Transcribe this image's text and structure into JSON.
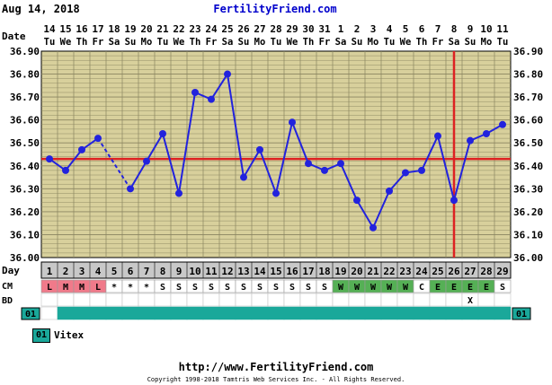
{
  "header": {
    "date": "Aug 14, 2018",
    "site": "FertilityFriend.com"
  },
  "row_labels": {
    "date": "Date",
    "day": "Day",
    "cm": "CM",
    "bd": "BD",
    "code": "01"
  },
  "legend": {
    "code": "01",
    "label": "Vitex"
  },
  "footer": {
    "url": "http://www.FertilityFriend.com",
    "copyright": "Copyright 1998-2018 Tamtris Web Services Inc. - All Rights Reserved."
  },
  "colors": {
    "grid_bg": "#d8d09c",
    "grid_line": "#8a8460",
    "line": "#2222dd",
    "coverline": "#dd2222",
    "day_row": "#c8c8c8",
    "cm_pink": "#f07a8a",
    "cm_green": "#55b055",
    "code_teal": "#1aa89a"
  },
  "chart_data": {
    "type": "line",
    "title": "",
    "xlabel": "Day",
    "ylabel": "",
    "ylim": [
      36.0,
      36.9
    ],
    "yticks": [
      "36.00",
      "36.10",
      "36.20",
      "36.30",
      "36.40",
      "36.50",
      "36.60",
      "36.70",
      "36.80",
      "36.90"
    ],
    "dates": [
      "14",
      "15",
      "16",
      "17",
      "18",
      "19",
      "20",
      "21",
      "22",
      "23",
      "24",
      "25",
      "26",
      "27",
      "28",
      "29",
      "30",
      "31",
      "1",
      "2",
      "3",
      "4",
      "5",
      "6",
      "7",
      "8",
      "9",
      "10",
      "11"
    ],
    "weekdays": [
      "Tu",
      "We",
      "Th",
      "Fr",
      "Sa",
      "Su",
      "Mo",
      "Tu",
      "We",
      "Th",
      "Fr",
      "Sa",
      "Su",
      "Mo",
      "Tu",
      "We",
      "Th",
      "Fr",
      "Sa",
      "Su",
      "Mo",
      "Tu",
      "We",
      "Th",
      "Fr",
      "Sa",
      "Su",
      "Mo",
      "Tu"
    ],
    "days": [
      "1",
      "2",
      "3",
      "4",
      "5",
      "6",
      "7",
      "8",
      "9",
      "10",
      "11",
      "12",
      "13",
      "14",
      "15",
      "16",
      "17",
      "18",
      "19",
      "20",
      "21",
      "22",
      "23",
      "24",
      "25",
      "26",
      "27",
      "28",
      "29"
    ],
    "temps": [
      36.43,
      36.38,
      36.47,
      36.52,
      null,
      36.3,
      36.42,
      36.54,
      36.28,
      36.72,
      36.69,
      36.8,
      36.35,
      36.47,
      36.28,
      36.59,
      36.41,
      36.38,
      36.41,
      36.25,
      36.13,
      36.29,
      36.37,
      36.38,
      36.53,
      36.25,
      36.51,
      36.54,
      36.58
    ],
    "dashed_segments": [
      [
        4,
        6
      ]
    ],
    "coverline": 36.43,
    "ovulation_day": 26,
    "cm": [
      "L",
      "M",
      "M",
      "L",
      "*",
      "*",
      "*",
      "S",
      "S",
      "S",
      "S",
      "S",
      "S",
      "S",
      "S",
      "S",
      "S",
      "S",
      "W",
      "W",
      "W",
      "W",
      "W",
      "C",
      "E",
      "E",
      "E",
      "E",
      "S"
    ],
    "bd": [
      "",
      "",
      "",
      "",
      "",
      "",
      "",
      "",
      "",
      "",
      "",
      "",
      "",
      "",
      "",
      "",
      "",
      "",
      "",
      "",
      "",
      "",
      "",
      "",
      "",
      "",
      "X",
      "",
      ""
    ],
    "code_row": [
      "",
      "1",
      "1",
      "1",
      "1",
      "1",
      "1",
      "1",
      "1",
      "1",
      "1",
      "1",
      "1",
      "1",
      "1",
      "1",
      "1",
      "1",
      "1",
      "1",
      "1",
      "1",
      "1",
      "1",
      "1",
      "1",
      "1",
      "1",
      "1"
    ]
  }
}
